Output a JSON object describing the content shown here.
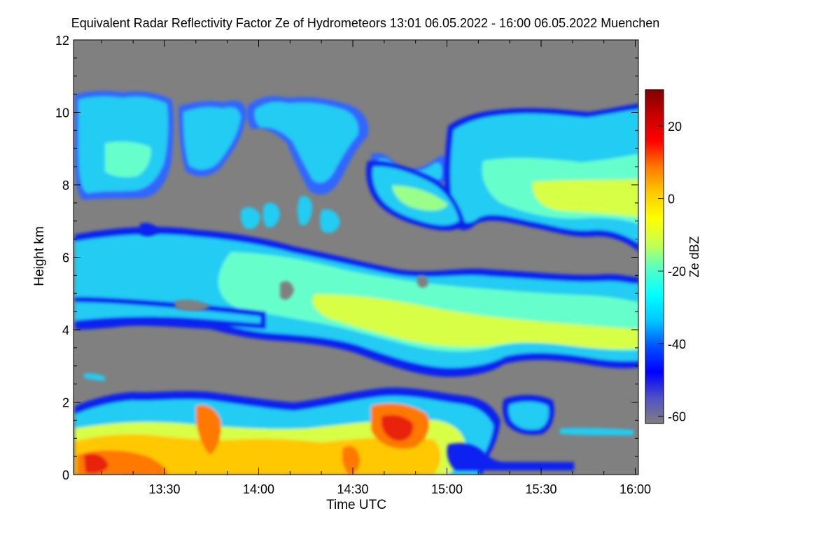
{
  "chart_data": {
    "type": "heatmap",
    "title": "Equivalent Radar Reflectivity Factor Ze of Hydrometeors   13:01 06.05.2022 - 16:00 06.05.2022 Muenchen",
    "xlabel": "Time UTC",
    "ylabel": "Height km",
    "x_range_minutes_utc": [
      781,
      961
    ],
    "y_range_km": [
      0,
      12
    ],
    "x_ticks": [
      {
        "label": "13:30",
        "value": 810
      },
      {
        "label": "14:00",
        "value": 840
      },
      {
        "label": "14:30",
        "value": 870
      },
      {
        "label": "15:00",
        "value": 900
      },
      {
        "label": "15:30",
        "value": 930
      },
      {
        "label": "16:00",
        "value": 960
      }
    ],
    "y_ticks": [
      {
        "label": "0",
        "value": 0
      },
      {
        "label": "2",
        "value": 2
      },
      {
        "label": "4",
        "value": 4
      },
      {
        "label": "6",
        "value": 6
      },
      {
        "label": "8",
        "value": 8
      },
      {
        "label": "10",
        "value": 10
      },
      {
        "label": "12",
        "value": 12
      }
    ],
    "colorbar": {
      "label": "Ze dBZ",
      "range": [
        -62,
        30
      ],
      "ticks": [
        {
          "label": "20",
          "value": 20
        },
        {
          "label": "0",
          "value": 0
        },
        {
          "label": "-20",
          "value": -20
        },
        {
          "label": "-40",
          "value": -40
        },
        {
          "label": "-60",
          "value": -60
        }
      ],
      "colors": [
        "#7f7f7f",
        "#5050c8",
        "#0000ff",
        "#0050ff",
        "#00c8ff",
        "#00ffff",
        "#50ffc8",
        "#c8ff50",
        "#ffff00",
        "#ffc800",
        "#ff7800",
        "#ff0000",
        "#c80000",
        "#800000"
      ]
    },
    "background_color": "#808080",
    "features": [
      {
        "name": "upper-cirrus-left",
        "x_range": [
          781,
          833
        ],
        "y_range": [
          7.6,
          10.4
        ],
        "ze": -25
      },
      {
        "name": "upper-cirrus-middle",
        "x_range": [
          833,
          880
        ],
        "y_range": [
          8.5,
          10.2
        ],
        "ze": -28
      },
      {
        "name": "upper-layer-right",
        "x_range": [
          895,
          961
        ],
        "y_range": [
          6.5,
          10.2
        ],
        "ze": -15
      },
      {
        "name": "mid-level-slanted-layer",
        "x_range": [
          781,
          961
        ],
        "y_range": [
          2.9,
          6.8
        ],
        "ze": -15
      },
      {
        "name": "low-level-rain",
        "x_range": [
          781,
          900
        ],
        "y_range": [
          0,
          2.6
        ],
        "ze": 10
      }
    ]
  }
}
